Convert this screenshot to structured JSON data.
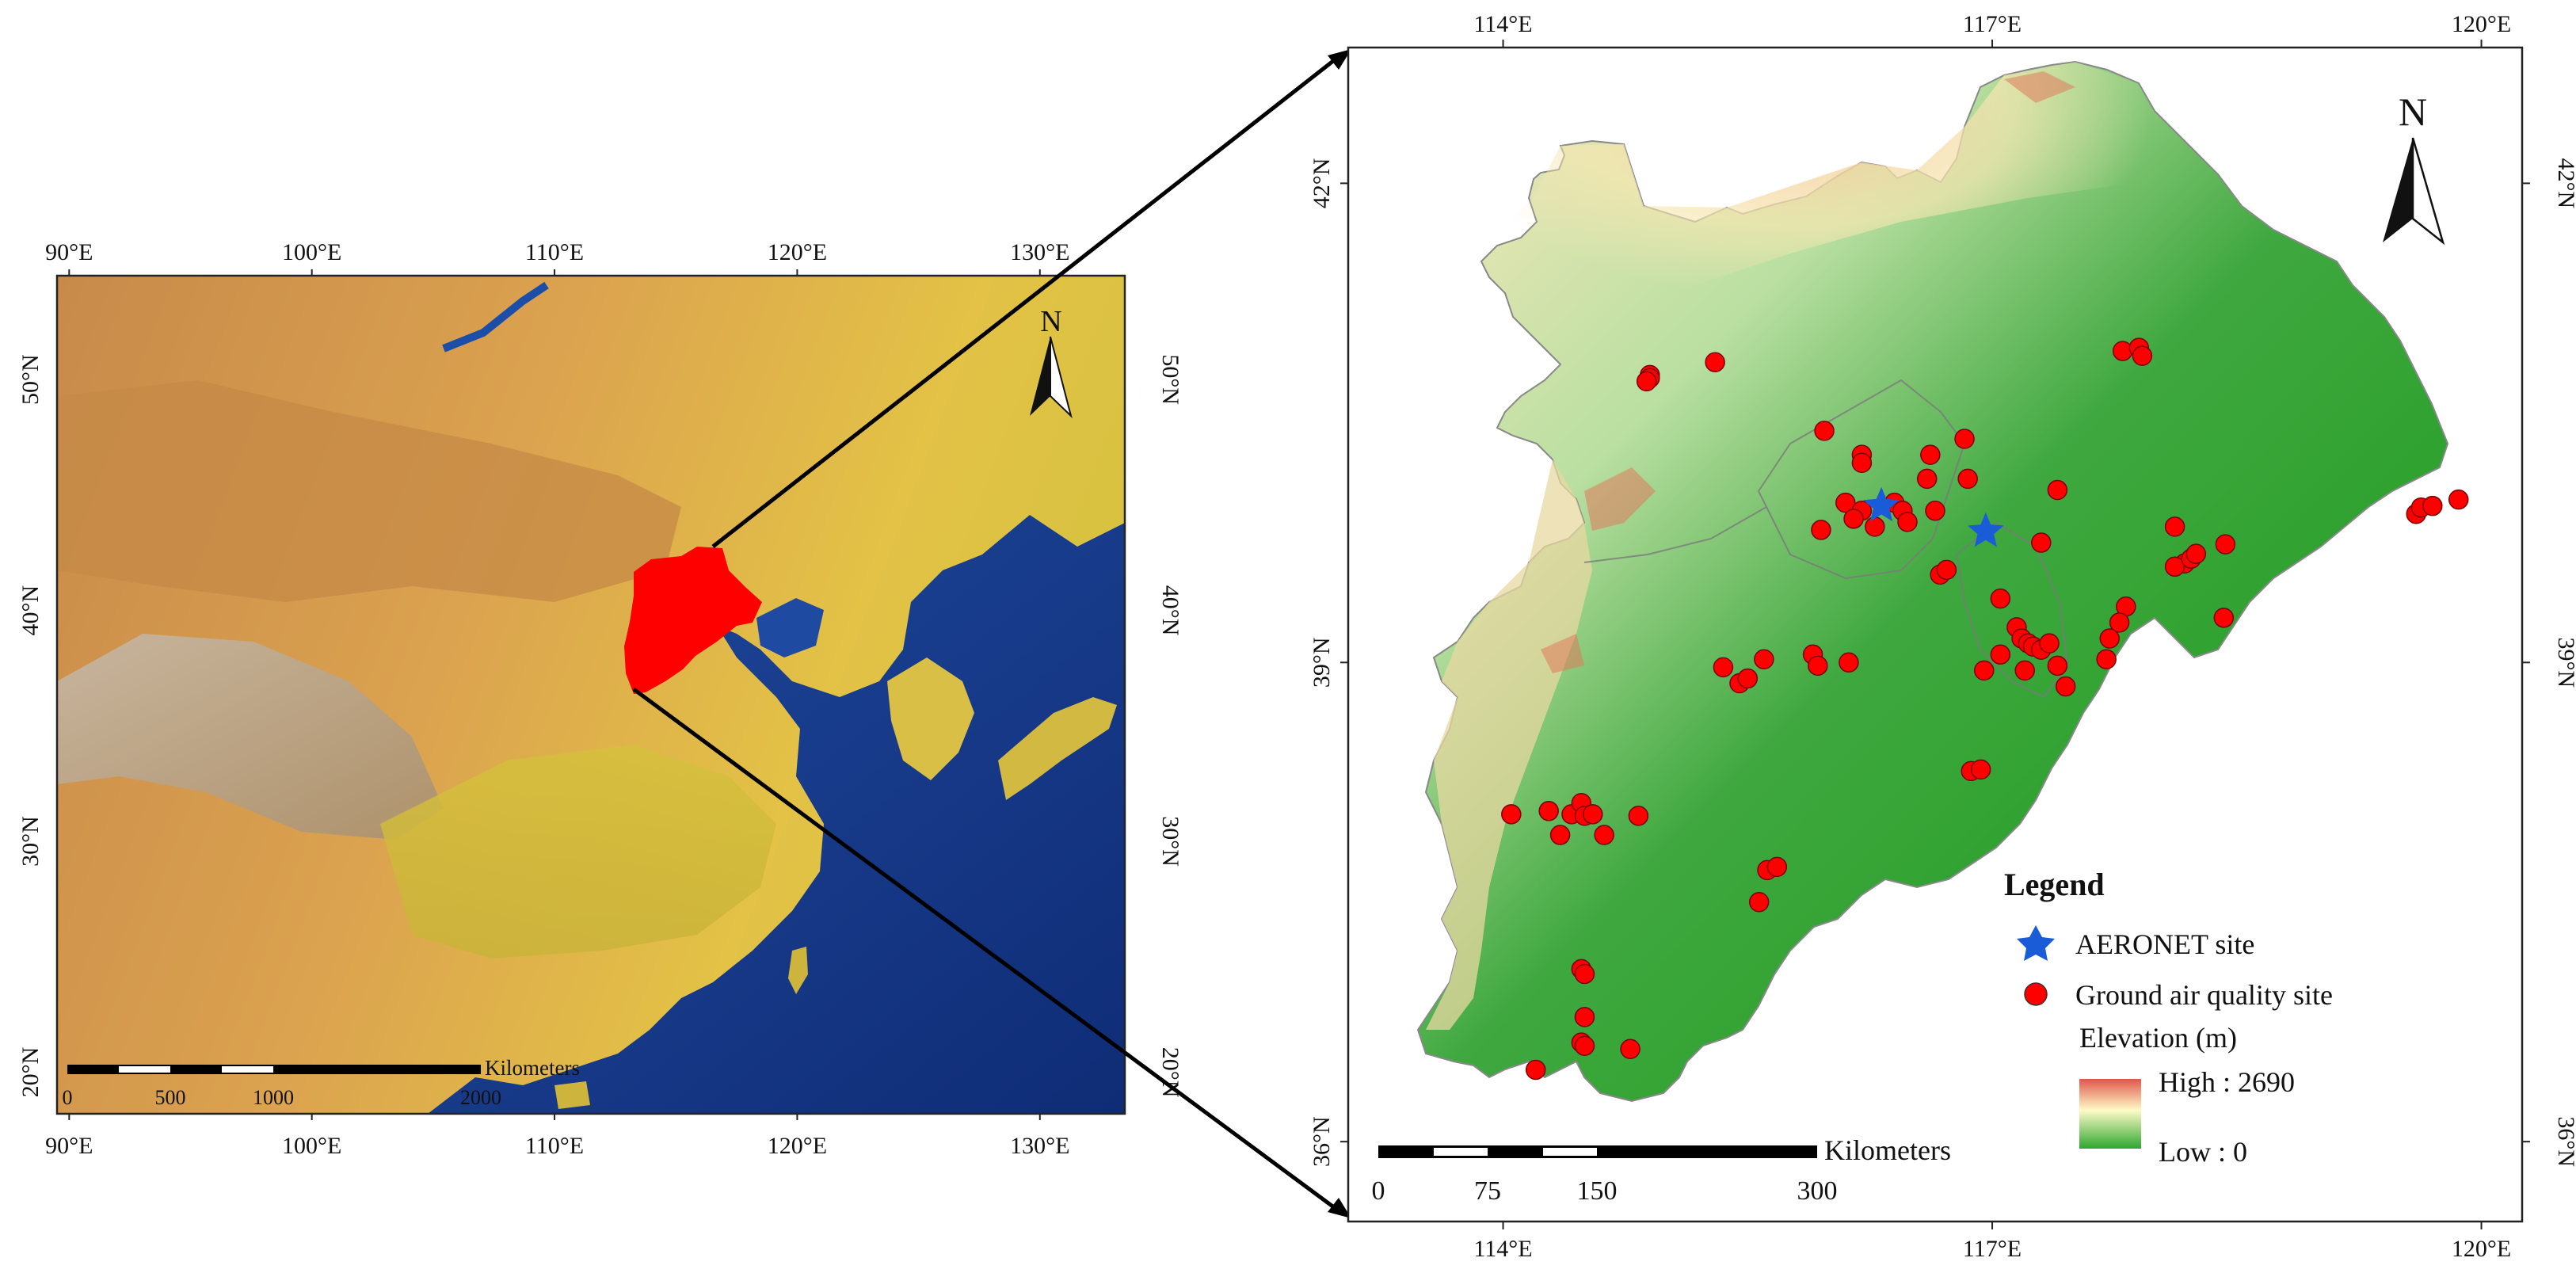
{
  "overview_map": {
    "lon_ticks": [
      "90°E",
      "100°E",
      "110°E",
      "120°E",
      "130°E"
    ],
    "lat_ticks": [
      "50°N",
      "40°N",
      "30°N",
      "20°N"
    ],
    "scale_bar": {
      "unit": "Kilometers",
      "labels": [
        "0",
        "500",
        "1000",
        "2000"
      ]
    },
    "north_label": "N",
    "highlight_color": "#ff0000"
  },
  "detail_map": {
    "lon_ticks": [
      "114°E",
      "117°E",
      "120°E"
    ],
    "lat_ticks": [
      "42°N",
      "39°N",
      "36°N"
    ],
    "scale_bar": {
      "unit": "Kilometers",
      "labels": [
        "0",
        "75",
        "150",
        "300"
      ]
    },
    "north_label": "N",
    "legend": {
      "title": "Legend",
      "aeronet_label": "AERONET site",
      "ground_label": "Ground air quality site",
      "elevation_title": "Elevation (m)",
      "high_label": "High : 2690",
      "low_label": "Low : 0"
    },
    "colors": {
      "aeronet": "#1a5bd8",
      "ground": "#ff0000",
      "high": "#e0574a",
      "mid": "#fffbc8",
      "low": "#2ea62e"
    },
    "aeronet_sites": [
      {
        "lon": 116.32,
        "lat": 39.98
      },
      {
        "lon": 116.96,
        "lat": 39.82
      }
    ],
    "ground_sites": [
      {
        "lon": 114.9,
        "lat": 40.8
      },
      {
        "lon": 114.9,
        "lat": 40.78
      },
      {
        "lon": 114.88,
        "lat": 40.76
      },
      {
        "lon": 115.3,
        "lat": 40.88
      },
      {
        "lon": 115.97,
        "lat": 40.45
      },
      {
        "lon": 116.2,
        "lat": 40.3
      },
      {
        "lon": 116.2,
        "lat": 40.25
      },
      {
        "lon": 116.62,
        "lat": 40.3
      },
      {
        "lon": 116.83,
        "lat": 40.4
      },
      {
        "lon": 116.6,
        "lat": 40.15
      },
      {
        "lon": 116.85,
        "lat": 40.15
      },
      {
        "lon": 117.4,
        "lat": 40.08
      },
      {
        "lon": 116.1,
        "lat": 40.0
      },
      {
        "lon": 116.2,
        "lat": 39.95
      },
      {
        "lon": 116.4,
        "lat": 40.0
      },
      {
        "lon": 116.45,
        "lat": 39.95
      },
      {
        "lon": 116.15,
        "lat": 39.9
      },
      {
        "lon": 116.28,
        "lat": 39.85
      },
      {
        "lon": 116.48,
        "lat": 39.88
      },
      {
        "lon": 115.95,
        "lat": 39.83
      },
      {
        "lon": 116.65,
        "lat": 39.95
      },
      {
        "lon": 117.3,
        "lat": 39.75
      },
      {
        "lon": 116.68,
        "lat": 39.55
      },
      {
        "lon": 116.72,
        "lat": 39.58
      },
      {
        "lon": 117.05,
        "lat": 39.4
      },
      {
        "lon": 117.15,
        "lat": 39.22
      },
      {
        "lon": 117.18,
        "lat": 39.15
      },
      {
        "lon": 117.22,
        "lat": 39.12
      },
      {
        "lon": 117.25,
        "lat": 39.1
      },
      {
        "lon": 117.3,
        "lat": 39.08
      },
      {
        "lon": 117.35,
        "lat": 39.12
      },
      {
        "lon": 117.05,
        "lat": 39.05
      },
      {
        "lon": 117.4,
        "lat": 38.98
      },
      {
        "lon": 117.2,
        "lat": 38.95
      },
      {
        "lon": 116.95,
        "lat": 38.95
      },
      {
        "lon": 117.45,
        "lat": 38.85
      },
      {
        "lon": 117.8,
        "lat": 40.95
      },
      {
        "lon": 117.9,
        "lat": 40.97
      },
      {
        "lon": 117.92,
        "lat": 40.92
      },
      {
        "lon": 118.12,
        "lat": 39.85
      },
      {
        "lon": 118.18,
        "lat": 39.62
      },
      {
        "lon": 118.12,
        "lat": 39.6
      },
      {
        "lon": 118.22,
        "lat": 39.65
      },
      {
        "lon": 118.25,
        "lat": 39.68
      },
      {
        "lon": 118.43,
        "lat": 39.74
      },
      {
        "lon": 118.42,
        "lat": 39.28
      },
      {
        "lon": 117.82,
        "lat": 39.35
      },
      {
        "lon": 117.78,
        "lat": 39.25
      },
      {
        "lon": 117.72,
        "lat": 39.15
      },
      {
        "lon": 117.7,
        "lat": 39.02
      },
      {
        "lon": 119.6,
        "lat": 39.93
      },
      {
        "lon": 119.63,
        "lat": 39.97
      },
      {
        "lon": 119.7,
        "lat": 39.98
      },
      {
        "lon": 119.86,
        "lat": 40.02
      },
      {
        "lon": 115.35,
        "lat": 38.97
      },
      {
        "lon": 115.45,
        "lat": 38.87
      },
      {
        "lon": 115.5,
        "lat": 38.9
      },
      {
        "lon": 115.6,
        "lat": 39.02
      },
      {
        "lon": 115.9,
        "lat": 39.05
      },
      {
        "lon": 115.93,
        "lat": 38.98
      },
      {
        "lon": 116.12,
        "lat": 39.0
      },
      {
        "lon": 114.05,
        "lat": 38.05
      },
      {
        "lon": 114.28,
        "lat": 38.07
      },
      {
        "lon": 114.42,
        "lat": 38.05
      },
      {
        "lon": 114.48,
        "lat": 38.12
      },
      {
        "lon": 114.5,
        "lat": 38.04
      },
      {
        "lon": 114.55,
        "lat": 38.05
      },
      {
        "lon": 114.35,
        "lat": 37.92
      },
      {
        "lon": 114.62,
        "lat": 37.92
      },
      {
        "lon": 114.83,
        "lat": 38.04
      },
      {
        "lon": 115.62,
        "lat": 37.7
      },
      {
        "lon": 115.68,
        "lat": 37.72
      },
      {
        "lon": 115.57,
        "lat": 37.5
      },
      {
        "lon": 116.87,
        "lat": 38.32
      },
      {
        "lon": 116.93,
        "lat": 38.33
      },
      {
        "lon": 114.48,
        "lat": 37.08
      },
      {
        "lon": 114.5,
        "lat": 37.05
      },
      {
        "lon": 114.5,
        "lat": 36.78
      },
      {
        "lon": 114.48,
        "lat": 36.62
      },
      {
        "lon": 114.5,
        "lat": 36.6
      },
      {
        "lon": 114.78,
        "lat": 36.58
      },
      {
        "lon": 114.2,
        "lat": 36.45
      }
    ]
  }
}
